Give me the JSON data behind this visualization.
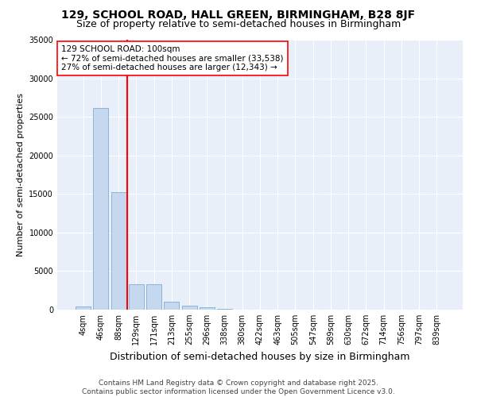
{
  "title": "129, SCHOOL ROAD, HALL GREEN, BIRMINGHAM, B28 8JF",
  "subtitle": "Size of property relative to semi-detached houses in Birmingham",
  "xlabel": "Distribution of semi-detached houses by size in Birmingham",
  "ylabel": "Number of semi-detached properties",
  "categories": [
    "4sqm",
    "46sqm",
    "88sqm",
    "129sqm",
    "171sqm",
    "213sqm",
    "255sqm",
    "296sqm",
    "338sqm",
    "380sqm",
    "422sqm",
    "463sqm",
    "505sqm",
    "547sqm",
    "589sqm",
    "630sqm",
    "672sqm",
    "714sqm",
    "756sqm",
    "797sqm",
    "839sqm"
  ],
  "bar_values": [
    400,
    26100,
    15200,
    3250,
    3250,
    1050,
    480,
    280,
    100,
    50,
    20,
    10,
    0,
    0,
    0,
    0,
    0,
    0,
    0,
    0,
    0
  ],
  "bar_color": "#c5d8f0",
  "bar_edgecolor": "#7aaed6",
  "vline_x": 2.5,
  "vline_color": "red",
  "annotation_title": "129 SCHOOL ROAD: 100sqm",
  "annotation_line1": "← 72% of semi-detached houses are smaller (33,538)",
  "annotation_line2": "27% of semi-detached houses are larger (12,343) →",
  "annotation_box_color": "white",
  "annotation_box_edgecolor": "red",
  "ylim": [
    0,
    35000
  ],
  "yticks": [
    0,
    5000,
    10000,
    15000,
    20000,
    25000,
    30000,
    35000
  ],
  "background_color": "#e8eff9",
  "footer_line1": "Contains HM Land Registry data © Crown copyright and database right 2025.",
  "footer_line2": "Contains public sector information licensed under the Open Government Licence v3.0.",
  "title_fontsize": 10,
  "subtitle_fontsize": 9,
  "xlabel_fontsize": 9,
  "ylabel_fontsize": 8,
  "tick_fontsize": 7,
  "footer_fontsize": 6.5,
  "ann_fontsize": 7.5
}
